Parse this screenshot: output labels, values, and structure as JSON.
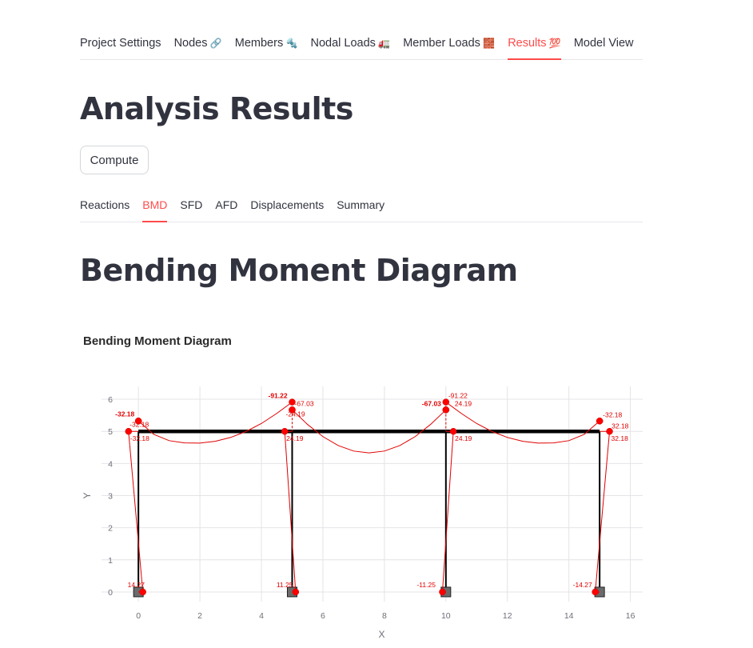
{
  "nav": {
    "tabs": [
      {
        "label": "Project Settings",
        "emoji": ""
      },
      {
        "label": "Nodes",
        "emoji": "🔗"
      },
      {
        "label": "Members",
        "emoji": "🔩"
      },
      {
        "label": "Nodal Loads",
        "emoji": "🚛"
      },
      {
        "label": "Member Loads",
        "emoji": "🧱"
      },
      {
        "label": "Results",
        "emoji": "💯"
      },
      {
        "label": "Model View",
        "emoji": ""
      }
    ],
    "active_index": 5
  },
  "page_title": "Analysis Results",
  "compute_button": "Compute",
  "result_tabs": {
    "tabs": [
      "Reactions",
      "BMD",
      "SFD",
      "AFD",
      "Displacements",
      "Summary"
    ],
    "active_index": 1
  },
  "section_title": "Bending Moment Diagram",
  "chart_data": {
    "type": "scatter",
    "title": "Bending Moment Diagram",
    "xlabel": "X",
    "ylabel": "Y",
    "xlim": [
      -1.2,
      16.4
    ],
    "ylim": [
      -0.3,
      6.4
    ],
    "x_ticks": [
      0,
      2,
      4,
      6,
      8,
      10,
      12,
      14,
      16
    ],
    "y_ticks": [
      0,
      1,
      2,
      3,
      4,
      5,
      6
    ],
    "grid": true,
    "colors": {
      "structure": "#000000",
      "diagram": "#e00000",
      "support": "#555555"
    },
    "structure": {
      "beam": [
        [
          0,
          5
        ],
        [
          15,
          5
        ]
      ],
      "columns": [
        [
          [
            0,
            0
          ],
          [
            0,
            5
          ]
        ],
        [
          [
            5,
            0
          ],
          [
            5,
            5
          ]
        ],
        [
          [
            10,
            0
          ],
          [
            10,
            5
          ]
        ],
        [
          [
            15,
            0
          ],
          [
            15,
            5
          ]
        ]
      ],
      "supports": [
        [
          0,
          0
        ],
        [
          5,
          0
        ],
        [
          10,
          0
        ],
        [
          15,
          0
        ]
      ]
    },
    "bmd_lines": [
      [
        [
          0,
          0
        ],
        [
          0.143,
          0
        ],
        [
          -0.322,
          5
        ],
        [
          0,
          5
        ]
      ],
      [
        [
          5,
          0
        ],
        [
          5.113,
          0
        ],
        [
          4.758,
          5
        ],
        [
          5,
          5
        ]
      ],
      [
        [
          10,
          0
        ],
        [
          9.887,
          0
        ],
        [
          10.242,
          5
        ],
        [
          10,
          5
        ]
      ],
      [
        [
          15,
          0
        ],
        [
          14.857,
          0
        ],
        [
          15.322,
          5
        ],
        [
          15,
          5
        ]
      ],
      [
        [
          0,
          5.322
        ],
        [
          0.5,
          4.908
        ],
        [
          1,
          4.711
        ],
        [
          1.5,
          4.641
        ],
        [
          2,
          4.635
        ],
        [
          2.5,
          4.691
        ],
        [
          3,
          4.811
        ],
        [
          3.5,
          4.996
        ],
        [
          4,
          5.245
        ],
        [
          4.5,
          5.559
        ],
        [
          5,
          5.912
        ]
      ],
      [
        [
          5,
          5.67
        ],
        [
          5.5,
          5.215
        ],
        [
          6,
          4.837
        ],
        [
          6.5,
          4.558
        ],
        [
          7,
          4.387
        ],
        [
          7.5,
          4.33
        ],
        [
          8,
          4.387
        ],
        [
          8.5,
          4.558
        ],
        [
          9,
          4.837
        ],
        [
          9.5,
          5.215
        ],
        [
          10,
          5.67
        ]
      ],
      [
        [
          10,
          5.912
        ],
        [
          10.5,
          5.559
        ],
        [
          11,
          5.245
        ],
        [
          11.5,
          4.996
        ],
        [
          12,
          4.811
        ],
        [
          12.5,
          4.691
        ],
        [
          13,
          4.635
        ],
        [
          13.5,
          4.641
        ],
        [
          14,
          4.711
        ],
        [
          14.5,
          4.908
        ],
        [
          15,
          5.322
        ]
      ]
    ],
    "bmd_dashed": [
      [
        [
          5,
          5.67
        ],
        [
          5,
          5.0
        ]
      ],
      [
        [
          10,
          5.912
        ],
        [
          10,
          5.0
        ]
      ]
    ],
    "points": [
      {
        "x": 0.143,
        "y": 0,
        "label": "14.27",
        "bold": false,
        "dx": -19,
        "dy": -6
      },
      {
        "x": -0.322,
        "y": 5,
        "label": "-32.18",
        "bold": false,
        "dx": 2,
        "dy": 12
      },
      {
        "x": 0,
        "y": 5.322,
        "label": "-32.18",
        "bold": true,
        "dx": -29,
        "dy": -6
      },
      {
        "x": 0,
        "y": 5.322,
        "label": "-32.18",
        "bold": false,
        "dx": -11,
        "dy": 7
      },
      {
        "x": 5.113,
        "y": 0,
        "label": "11.25",
        "bold": false,
        "dx": -24,
        "dy": -6
      },
      {
        "x": 4.758,
        "y": 5,
        "label": "24.19",
        "bold": false,
        "dx": 2,
        "dy": 12
      },
      {
        "x": 5,
        "y": 5.912,
        "label": "-91.22",
        "bold": true,
        "dx": -30,
        "dy": -5
      },
      {
        "x": 5,
        "y": 5.67,
        "label": "-67.03",
        "bold": false,
        "dx": 3,
        "dy": -5
      },
      {
        "x": 5,
        "y": 5.67,
        "label": "-24.19",
        "bold": false,
        "dx": -8,
        "dy": 8
      },
      {
        "x": 9.887,
        "y": 0,
        "label": "-11.25",
        "bold": false,
        "dx": -32,
        "dy": -6
      },
      {
        "x": 10.242,
        "y": 5,
        "label": "24.19",
        "bold": false,
        "dx": 2,
        "dy": 12
      },
      {
        "x": 10,
        "y": 5.67,
        "label": "-67.03",
        "bold": true,
        "dx": -30,
        "dy": -5
      },
      {
        "x": 10,
        "y": 5.912,
        "label": "-91.22",
        "bold": false,
        "dx": 3,
        "dy": -5
      },
      {
        "x": 10,
        "y": 5.67,
        "label": "24.19",
        "bold": false,
        "dx": 11,
        "dy": -5
      },
      {
        "x": 14.857,
        "y": 0,
        "label": "-14.27",
        "bold": false,
        "dx": -28,
        "dy": -6
      },
      {
        "x": 15.322,
        "y": 5,
        "label": "32.18",
        "bold": false,
        "dx": 2,
        "dy": 12
      },
      {
        "x": 15,
        "y": 5.322,
        "label": "-32.18",
        "bold": false,
        "dx": 4,
        "dy": -5
      },
      {
        "x": 15,
        "y": 5.322,
        "label": "32.18",
        "bold": false,
        "dx": 15,
        "dy": 9
      }
    ]
  }
}
